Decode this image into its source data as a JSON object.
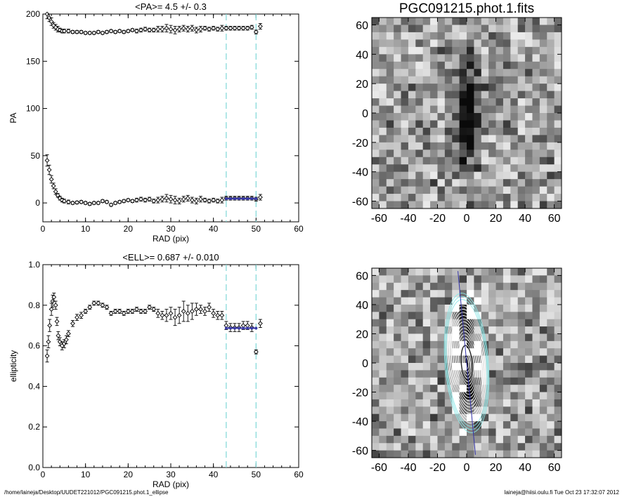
{
  "colors": {
    "axis": "#000000",
    "marker": "#000000",
    "fit": "#3a3aa8",
    "guide": "#7fd8d8",
    "ellipse_light": "#ffffff",
    "ellipse_cyan": "#8de8e8",
    "major_axis": "#3333aa"
  },
  "footer": {
    "path": "/home/laineja/Desktop/UUDET221012/PGC091215.phot.1_ellipse",
    "stamp": "laineja@hiisi.oulu.fi  Tue Oct 23 17:32:07 2012"
  },
  "chart_data": [
    {
      "id": "pa",
      "type": "scatter",
      "title": "<PA>=   4.5 +/-   0.3",
      "xlabel": "RAD (pix)",
      "ylabel": "PA",
      "xlim": [
        0,
        60
      ],
      "ylim": [
        -20,
        200
      ],
      "xticks": [
        0,
        10,
        20,
        30,
        40,
        50,
        60
      ],
      "yticks": [
        0,
        50,
        100,
        150,
        200
      ],
      "vlines": [
        43,
        50
      ],
      "fit_range": [
        43,
        50
      ],
      "fit_value": 4.5,
      "series": [
        {
          "values_x": [
            1,
            1.5,
            2,
            2.5,
            3,
            3.5,
            4,
            4.5,
            5,
            6,
            7,
            8,
            9,
            10,
            11,
            12,
            13,
            14,
            15,
            16,
            17,
            18,
            19,
            20,
            21,
            22,
            23,
            24,
            25,
            26,
            27,
            28,
            29,
            30,
            31,
            32,
            33,
            34,
            35,
            36,
            37,
            38,
            39,
            40,
            41,
            42,
            43,
            44,
            45,
            46,
            47,
            48,
            49,
            50,
            51
          ],
          "values_y": [
            45,
            35,
            25,
            18,
            12,
            8,
            5,
            3,
            2,
            1,
            0,
            0.5,
            1,
            0,
            -1,
            0,
            0,
            2,
            1,
            -2,
            0,
            1,
            2,
            3,
            2,
            3,
            4,
            3,
            4,
            2,
            3,
            4,
            5,
            4,
            3,
            2,
            4,
            5,
            3,
            2,
            4,
            3,
            2,
            3,
            2,
            3,
            5,
            5,
            5,
            5,
            5,
            5,
            5,
            4,
            6
          ],
          "err": [
            6,
            5,
            4,
            3,
            3,
            2,
            2,
            2,
            2,
            2,
            1.5,
            1.5,
            1.5,
            1.5,
            1.5,
            1.5,
            1.5,
            1.5,
            1.5,
            1.5,
            1.5,
            1.5,
            1.5,
            1.5,
            1.5,
            2,
            2,
            2,
            2,
            2,
            3,
            3,
            4,
            4,
            4,
            3,
            3,
            3,
            3,
            3,
            3,
            2,
            2,
            2,
            2,
            3,
            2,
            2,
            2,
            2,
            2,
            2,
            2,
            2,
            3
          ]
        },
        {
          "values_x": [
            1,
            1.5,
            2,
            2.5,
            3,
            3.5,
            4,
            4.5,
            5,
            6,
            7,
            8,
            9,
            10,
            11,
            12,
            13,
            14,
            15,
            16,
            17,
            18,
            19,
            20,
            21,
            22,
            23,
            24,
            25,
            26,
            27,
            28,
            29,
            30,
            31,
            32,
            33,
            34,
            35,
            36,
            37,
            38,
            39,
            40,
            41,
            42,
            43,
            44,
            45,
            46,
            47,
            48,
            49,
            50,
            51
          ],
          "values_y": [
            200,
            196,
            192,
            188,
            186,
            184,
            183,
            182,
            182,
            182,
            181,
            181,
            181,
            180,
            180,
            180,
            181,
            180,
            181,
            182,
            181,
            182,
            181,
            182,
            183,
            182,
            183,
            184,
            183,
            183,
            184,
            184,
            185,
            184,
            183,
            184,
            185,
            184,
            185,
            183,
            184,
            185,
            184,
            185,
            184,
            185,
            185,
            185,
            185,
            185,
            185,
            185,
            186,
            181,
            187
          ],
          "err": [
            5,
            4,
            4,
            3,
            3,
            3,
            2,
            2,
            2,
            2,
            1.5,
            1.5,
            1.5,
            1.5,
            1.5,
            1.5,
            1.5,
            1.5,
            1.5,
            1.5,
            1.5,
            1.5,
            1.5,
            1.5,
            1.5,
            2,
            2,
            2,
            2,
            2,
            3,
            3,
            4,
            4,
            4,
            3,
            3,
            3,
            3,
            3,
            3,
            2,
            2,
            2,
            2,
            3,
            2,
            2,
            2,
            2,
            2,
            2,
            2,
            2,
            3
          ]
        }
      ]
    },
    {
      "id": "ell",
      "type": "scatter",
      "title": "<ELL>= 0.687 +/-  0.010",
      "xlabel": "RAD (pix)",
      "ylabel": "ellipticity",
      "xlim": [
        0,
        60
      ],
      "ylim": [
        0,
        1
      ],
      "xticks": [
        0,
        10,
        20,
        30,
        40,
        50,
        60
      ],
      "yticks": [
        0.0,
        0.2,
        0.4,
        0.6,
        0.8,
        1.0
      ],
      "ytick_labels": [
        "0.0",
        "0.2",
        "0.4",
        "0.6",
        "0.8",
        "1.0"
      ],
      "vlines": [
        43,
        50
      ],
      "fit_range": [
        43,
        50
      ],
      "fit_value": 0.687,
      "series": [
        {
          "values_x": [
            1,
            1.3,
            1.6,
            2,
            2.3,
            2.6,
            3,
            3.3,
            3.6,
            4,
            4.5,
            5,
            5.5,
            6,
            7,
            8,
            9,
            10,
            11,
            12,
            13,
            14,
            15,
            16,
            17,
            18,
            19,
            20,
            21,
            22,
            23,
            24,
            25,
            26,
            27,
            28,
            29,
            30,
            31,
            32,
            33,
            34,
            35,
            36,
            37,
            38,
            39,
            40,
            41,
            42,
            43,
            44,
            45,
            46,
            47,
            48,
            49,
            50,
            51
          ],
          "values_y": [
            0.55,
            0.62,
            0.7,
            0.78,
            0.82,
            0.84,
            0.8,
            0.72,
            0.65,
            0.62,
            0.6,
            0.61,
            0.63,
            0.66,
            0.71,
            0.74,
            0.75,
            0.77,
            0.79,
            0.81,
            0.81,
            0.8,
            0.79,
            0.76,
            0.77,
            0.77,
            0.76,
            0.77,
            0.77,
            0.78,
            0.77,
            0.77,
            0.79,
            0.78,
            0.76,
            0.75,
            0.75,
            0.76,
            0.74,
            0.75,
            0.77,
            0.76,
            0.77,
            0.78,
            0.78,
            0.77,
            0.79,
            0.76,
            0.75,
            0.75,
            0.7,
            0.69,
            0.69,
            0.69,
            0.7,
            0.7,
            0.69,
            0.57,
            0.71
          ],
          "err": [
            0.03,
            0.03,
            0.03,
            0.03,
            0.03,
            0.02,
            0.02,
            0.02,
            0.02,
            0.02,
            0.02,
            0.02,
            0.02,
            0.015,
            0.015,
            0.015,
            0.015,
            0.01,
            0.01,
            0.01,
            0.01,
            0.01,
            0.01,
            0.01,
            0.01,
            0.01,
            0.01,
            0.01,
            0.01,
            0.01,
            0.01,
            0.01,
            0.01,
            0.01,
            0.02,
            0.02,
            0.03,
            0.03,
            0.04,
            0.04,
            0.05,
            0.04,
            0.04,
            0.03,
            0.02,
            0.02,
            0.02,
            0.02,
            0.02,
            0.02,
            0.02,
            0.02,
            0.02,
            0.02,
            0.02,
            0.02,
            0.02,
            0.01,
            0.02
          ]
        }
      ]
    },
    {
      "id": "image",
      "type": "heatmap",
      "title": "PGC091215.phot.1.fits",
      "xlim": [
        -65,
        65
      ],
      "ylim": [
        -65,
        65
      ],
      "xticks": [
        -60,
        -40,
        -20,
        0,
        20,
        40,
        60
      ],
      "yticks": [
        -60,
        -40,
        -20,
        0,
        20,
        40,
        60
      ]
    },
    {
      "id": "overlay",
      "type": "heatmap",
      "title": "",
      "xlim": [
        -65,
        65
      ],
      "ylim": [
        -65,
        65
      ],
      "xticks": [
        -60,
        -40,
        -20,
        0,
        20,
        40,
        60
      ],
      "yticks": [
        -60,
        -40,
        -20,
        0,
        20,
        40,
        60
      ]
    }
  ]
}
